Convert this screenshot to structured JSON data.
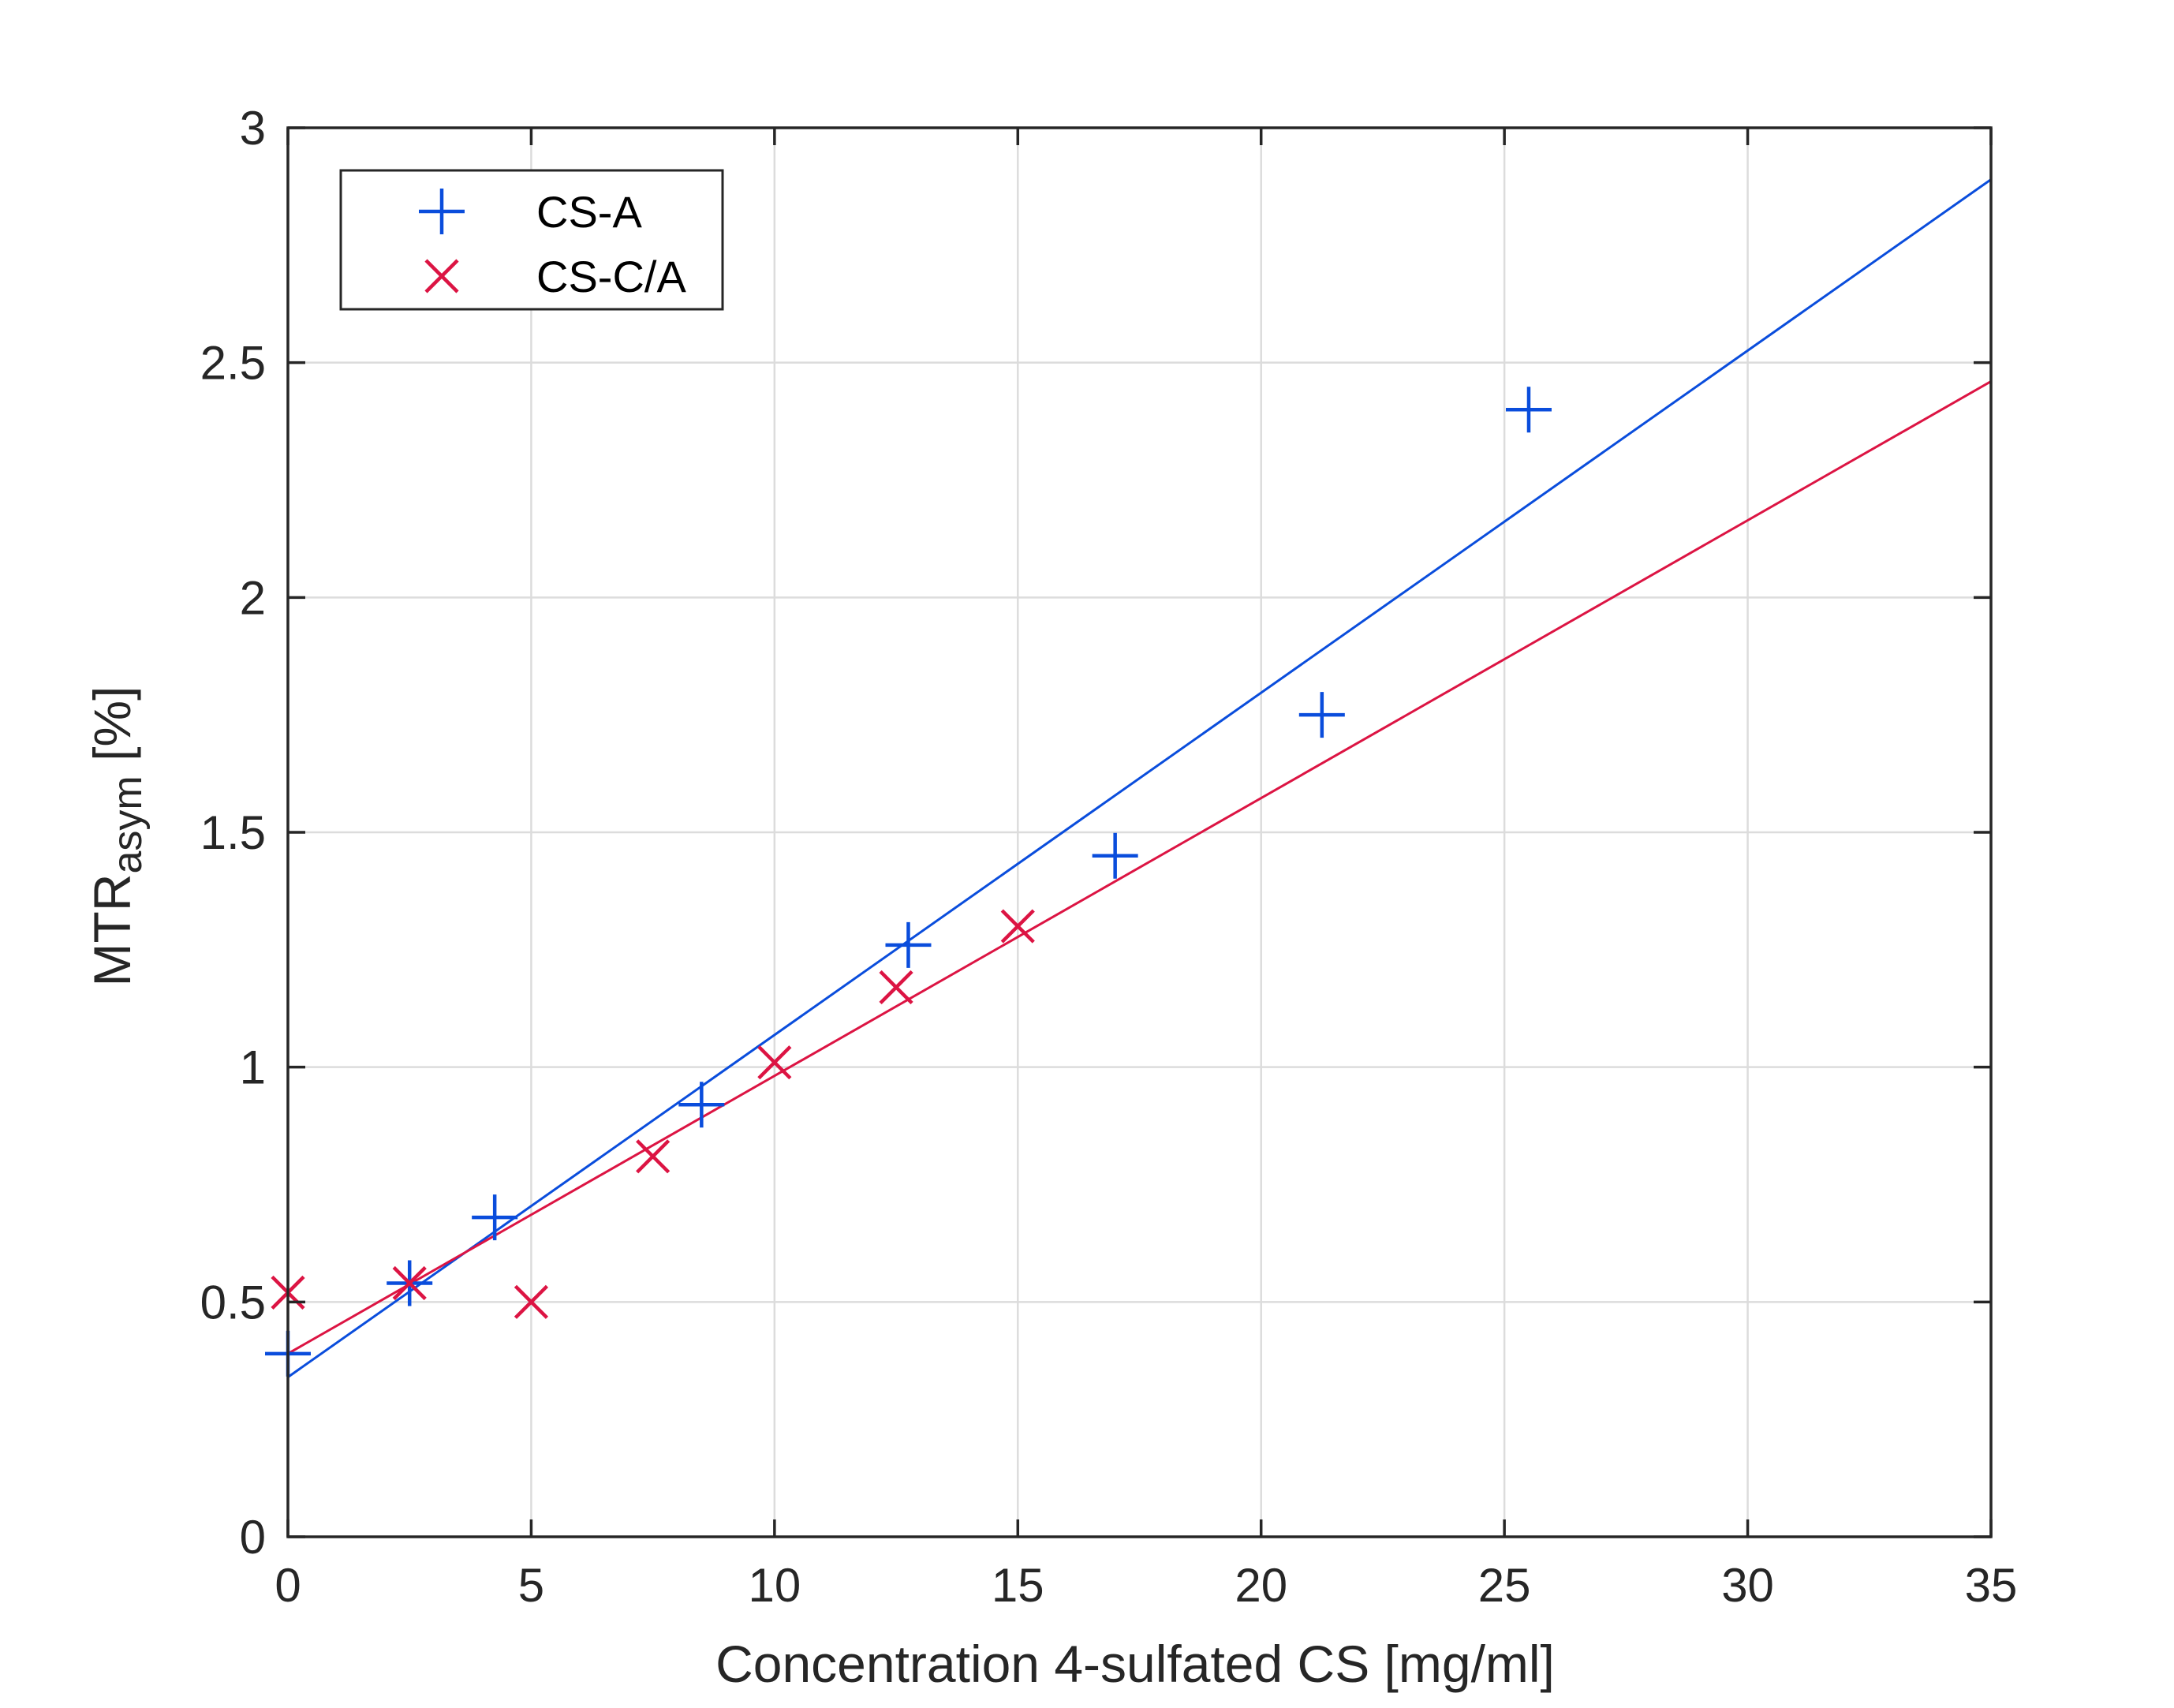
{
  "chart_data": {
    "type": "scatter",
    "title": "",
    "xlabel": "Concentration 4-sulfated CS [mg/ml]",
    "ylabel": {
      "main": "MTR",
      "subscript": "asym",
      "suffix": " [%]"
    },
    "xlim": [
      0,
      35
    ],
    "ylim": [
      0,
      3
    ],
    "xticks": [
      0,
      5,
      10,
      15,
      20,
      25,
      30,
      35
    ],
    "yticks": [
      0,
      0.5,
      1,
      1.5,
      2,
      2.5,
      3
    ],
    "grid": true,
    "legend_position": "top-left",
    "series": [
      {
        "name": "CS-A",
        "marker": "plus",
        "color": "#0a4ddc",
        "points": [
          {
            "x": 0,
            "y": 0.39
          },
          {
            "x": 2.5,
            "y": 0.54
          },
          {
            "x": 4.25,
            "y": 0.68
          },
          {
            "x": 8.5,
            "y": 0.92
          },
          {
            "x": 12.75,
            "y": 1.26
          },
          {
            "x": 17,
            "y": 1.45
          },
          {
            "x": 21.25,
            "y": 1.75
          },
          {
            "x": 25.5,
            "y": 2.4
          }
        ],
        "fit": {
          "x": [
            0,
            35
          ],
          "y": [
            0.34,
            2.89
          ]
        }
      },
      {
        "name": "CS-C/A",
        "marker": "cross",
        "color": "#dc1443",
        "points": [
          {
            "x": 0,
            "y": 0.52
          },
          {
            "x": 2.5,
            "y": 0.54
          },
          {
            "x": 5,
            "y": 0.5
          },
          {
            "x": 7.5,
            "y": 0.81
          },
          {
            "x": 10,
            "y": 1.01
          },
          {
            "x": 12.5,
            "y": 1.17
          },
          {
            "x": 15,
            "y": 1.3
          }
        ],
        "fit": {
          "x": [
            0,
            35
          ],
          "y": [
            0.39,
            2.46
          ]
        }
      }
    ]
  }
}
